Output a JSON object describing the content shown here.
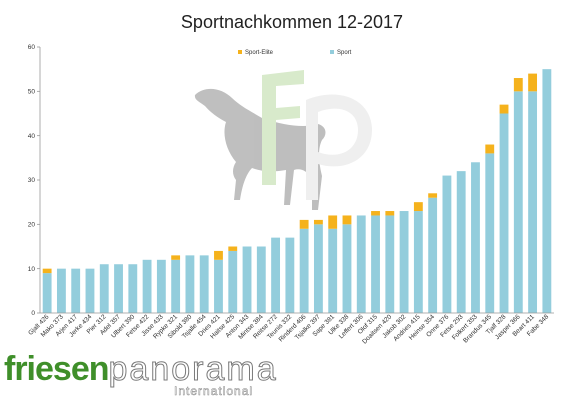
{
  "chart_data": {
    "type": "bar",
    "title": "Sportnachkommen 12-2017",
    "ylim": [
      0,
      60
    ],
    "yticks": [
      0,
      10,
      20,
      30,
      40,
      50,
      60
    ],
    "legend": "top-center",
    "grid": false,
    "categories": [
      "Gjalt 426",
      "Mako 373",
      "Arjen 417",
      "Jerke 434",
      "Pier 312",
      "Adel 357",
      "Ulbert 390",
      "Fetse 422",
      "Jisse 433",
      "Rypke 321",
      "Sibold 380",
      "Tsjalle 454",
      "Dries 421",
      "Haitse 425",
      "Anton 343",
      "Mintse 384",
      "Reitse 272",
      "Teunis 332",
      "Rinderd 406",
      "Tsjalke 397",
      "Sape 381",
      "Ulke 338",
      "Leffert 306",
      "Olof 315",
      "Doaitsen 420",
      "Jakob 302",
      "Andries 415",
      "Heinse 354",
      "Onne 376",
      "Fetse 293",
      "Folkert 353",
      "Brandus 345",
      "Tjalf 328",
      "Jasper 366",
      "Beart 411",
      "Fabe 348"
    ],
    "series": [
      {
        "name": "Sport",
        "color": "#93cddc",
        "values": [
          9,
          10,
          10,
          10,
          11,
          11,
          11,
          12,
          12,
          12,
          13,
          13,
          12,
          14,
          15,
          15,
          17,
          17,
          19,
          20,
          19,
          20,
          22,
          22,
          22,
          23,
          23,
          26,
          31,
          32,
          34,
          36,
          45,
          50,
          50,
          55
        ]
      },
      {
        "name": "Sport-Elite",
        "color": "#f5b21c",
        "values": [
          1,
          0,
          0,
          0,
          0,
          0,
          0,
          0,
          0,
          1,
          0,
          0,
          2,
          1,
          0,
          0,
          0,
          0,
          2,
          1,
          3,
          2,
          0,
          1,
          1,
          0,
          2,
          1,
          0,
          0,
          0,
          2,
          2,
          3,
          4,
          0
        ]
      }
    ]
  },
  "brand": {
    "part1": "friesen",
    "part2": "panorama",
    "sub": "International"
  }
}
